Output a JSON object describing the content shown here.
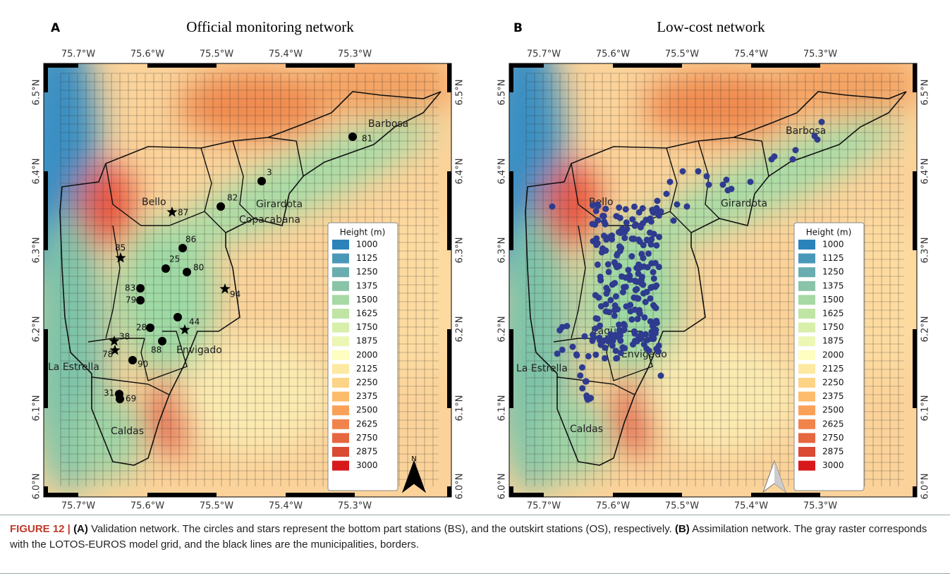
{
  "panels": [
    {
      "letter": "A",
      "title": "Official monitoring network",
      "lon_ticks": [
        "75.7°W",
        "75.6°W",
        "75.5°W",
        "75.4°W",
        "75.3°W"
      ],
      "lat_ticks": [
        "6.5°N",
        "6.4°N",
        "6.3°N",
        "6.2°N",
        "6.1°N",
        "6.0°N"
      ],
      "legend": {
        "title": "Height (m)",
        "items": [
          "1000",
          "1125",
          "1250",
          "1375",
          "1500",
          "1625",
          "1750",
          "1875",
          "2000",
          "2125",
          "2250",
          "2375",
          "2500",
          "2625",
          "2750",
          "2875",
          "3000"
        ]
      },
      "places": [
        "Barbosa",
        "Girardota",
        "Copacabana",
        "Bello",
        "Envigado",
        "La Estrella",
        "Caldas"
      ],
      "stations": [
        "81",
        "3",
        "82",
        "87",
        "86",
        "85",
        "25",
        "80",
        "83",
        "79",
        "94",
        "28",
        "44",
        "38",
        "88",
        "78",
        "90",
        "31",
        "69"
      ],
      "north": "N"
    },
    {
      "letter": "B",
      "title": "Low-cost network",
      "lon_ticks": [
        "75.7°W",
        "75.6°W",
        "75.5°W",
        "75.4°W",
        "75.3°W"
      ],
      "lat_ticks": [
        "6.5°N",
        "6.4°N",
        "6.3°N",
        "6.2°N",
        "6.1°N",
        "6.0°N"
      ],
      "legend": {
        "title": "Height (m)",
        "items": [
          "1000",
          "1125",
          "1250",
          "1375",
          "1500",
          "1625",
          "1750",
          "1875",
          "2000",
          "2125",
          "2250",
          "2375",
          "2500",
          "2625",
          "2750",
          "2875",
          "3000"
        ]
      },
      "places": [
        "Barbosa",
        "Girardota",
        "Bello",
        "Itagüí",
        "Envigado",
        "La Estrella",
        "Caldas"
      ]
    }
  ],
  "legend_colors": [
    "#2b83ba",
    "#4a98b8",
    "#6aadb0",
    "#89c3a8",
    "#a6d9a3",
    "#bfe4a3",
    "#d7efab",
    "#ecf7b6",
    "#fefec0",
    "#fee9a2",
    "#fdd385",
    "#fdbc6c",
    "#f9a159",
    "#f1844c",
    "#e6673f",
    "#db4a33",
    "#d7191c"
  ],
  "caption": {
    "figure": "FIGURE 12 |",
    "a_label": "(A)",
    "a_text": "Validation network. The circles and stars represent the bottom part stations (BS), and the outskirt stations (OS), respectively.",
    "b_label": "(B)",
    "b_text": "Assimilation network. The gray raster corresponds with the LOTOS-EUROS model grid, and the black lines are the municipalities, borders."
  }
}
